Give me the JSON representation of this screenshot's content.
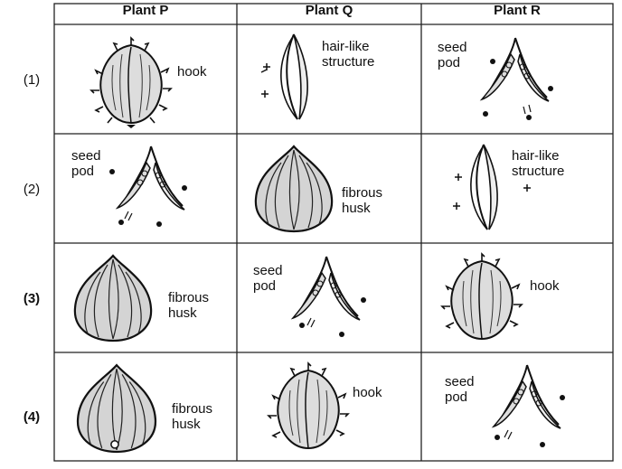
{
  "table": {
    "headers": [
      "Plant P",
      "Plant Q",
      "Plant R"
    ],
    "rows": [
      {
        "label": "(1)",
        "cells": [
          {
            "type": "burr",
            "label": "hook"
          },
          {
            "type": "wind",
            "label": "hair-like\nstructure"
          },
          {
            "type": "pod",
            "label": "seed\npod"
          }
        ]
      },
      {
        "label": "(2)",
        "cells": [
          {
            "type": "pod",
            "label": "seed\npod"
          },
          {
            "type": "husk",
            "label": "fibrous\nhusk"
          },
          {
            "type": "wind",
            "label": "hair-like\nstructure"
          }
        ]
      },
      {
        "label": "(3)",
        "cells": [
          {
            "type": "husk",
            "label": "fibrous\nhusk"
          },
          {
            "type": "pod",
            "label": "seed\npod"
          },
          {
            "type": "burr",
            "label": "hook"
          }
        ]
      },
      {
        "label": "(4)",
        "cells": [
          {
            "type": "husk",
            "label": "fibrous\nhusk"
          },
          {
            "type": "burr",
            "label": "hook"
          },
          {
            "type": "pod",
            "label": "seed\npod"
          }
        ]
      }
    ]
  }
}
